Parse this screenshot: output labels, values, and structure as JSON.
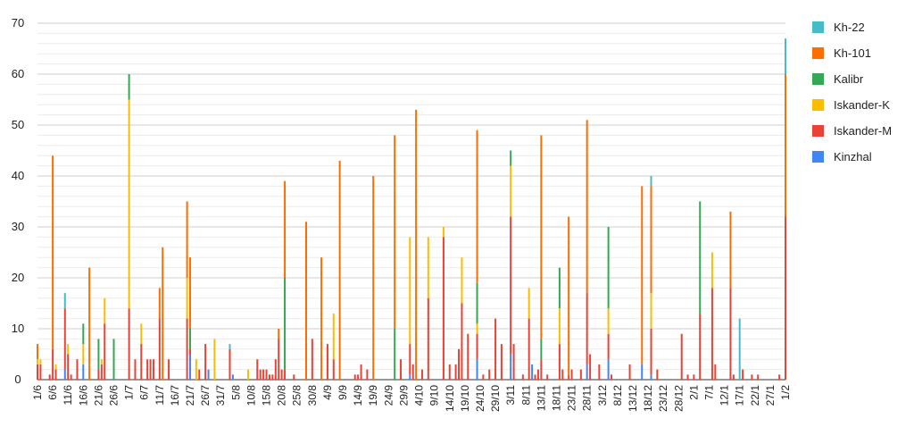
{
  "chart_data": {
    "type": "bar",
    "stacked": true,
    "ylim": [
      0,
      70
    ],
    "yticks": [
      0,
      10,
      20,
      30,
      40,
      50,
      60,
      70
    ],
    "grid": true,
    "legend_position": "right",
    "xtick_labels": [
      "1/6",
      "6/6",
      "11/6",
      "16/6",
      "21/6",
      "26/6",
      "1/7",
      "6/7",
      "11/7",
      "16/7",
      "21/7",
      "26/7",
      "31/7",
      "5/8",
      "10/8",
      "15/8",
      "20/8",
      "25/8",
      "30/8",
      "4/9",
      "9/9",
      "14/9",
      "19/9",
      "24/9",
      "29/9",
      "4/10",
      "9/10",
      "14/10",
      "19/10",
      "24/10",
      "29/10",
      "3/11",
      "8/11",
      "13/11",
      "18/11",
      "23/11",
      "28/11",
      "3/12",
      "8/12",
      "13/12",
      "18/12",
      "23/12",
      "28/12",
      "2/1",
      "7/1",
      "12/1",
      "17/1",
      "22/1",
      "27/1",
      "1/2"
    ],
    "series": [
      {
        "name": "Kinzhal",
        "color": "#4285f4"
      },
      {
        "name": "Iskander-M",
        "color": "#ea4335"
      },
      {
        "name": "Iskander-K",
        "color": "#fbbc04"
      },
      {
        "name": "Kalibr",
        "color": "#34a853"
      },
      {
        "name": "Kh-101",
        "color": "#ff6d01"
      },
      {
        "name": "Kh-22",
        "color": "#46bdc6"
      }
    ],
    "legend_order": [
      "Kh-22",
      "Kh-101",
      "Kalibr",
      "Iskander-K",
      "Iskander-M",
      "Kinzhal"
    ],
    "points": [
      {
        "date": "1/6",
        "values": [
          0,
          3,
          1,
          0,
          3,
          0
        ]
      },
      {
        "date": "2/6",
        "values": [
          0,
          3,
          1,
          0,
          0,
          0
        ]
      },
      {
        "date": "5/6",
        "values": [
          0,
          1,
          0,
          0,
          0,
          0
        ]
      },
      {
        "date": "6/6",
        "values": [
          0,
          6,
          0,
          0,
          38,
          0
        ]
      },
      {
        "date": "7/6",
        "values": [
          0,
          2,
          1,
          0,
          0,
          0
        ]
      },
      {
        "date": "9/6",
        "values": [
          0,
          0,
          0,
          0,
          0,
          0
        ]
      },
      {
        "date": "10/6",
        "values": [
          2,
          12,
          0,
          0,
          0,
          3
        ]
      },
      {
        "date": "11/6",
        "values": [
          0,
          5,
          2,
          0,
          0,
          0
        ]
      },
      {
        "date": "12/6",
        "values": [
          0,
          1,
          0,
          0,
          0,
          0
        ]
      },
      {
        "date": "14/6",
        "values": [
          0,
          4,
          0,
          0,
          0,
          0
        ]
      },
      {
        "date": "16/6",
        "values": [
          3,
          0,
          4,
          4,
          0,
          0
        ]
      },
      {
        "date": "18/6",
        "values": [
          0,
          0,
          0,
          0,
          22,
          0
        ]
      },
      {
        "date": "21/6",
        "values": [
          0,
          2,
          0,
          6,
          0,
          0
        ]
      },
      {
        "date": "22/6",
        "values": [
          0,
          3,
          1,
          0,
          0,
          0
        ]
      },
      {
        "date": "23/6",
        "values": [
          0,
          11,
          5,
          0,
          0,
          0
        ]
      },
      {
        "date": "26/6",
        "values": [
          0,
          0,
          0,
          8,
          0,
          0
        ]
      },
      {
        "date": "1/7",
        "values": [
          0,
          14,
          41,
          5,
          0,
          0
        ]
      },
      {
        "date": "3/7",
        "values": [
          0,
          4,
          0,
          0,
          0,
          0
        ]
      },
      {
        "date": "5/7",
        "values": [
          0,
          7,
          4,
          0,
          0,
          0
        ]
      },
      {
        "date": "7/7",
        "values": [
          0,
          4,
          0,
          0,
          0,
          0
        ]
      },
      {
        "date": "8/7",
        "values": [
          0,
          4,
          0,
          0,
          0,
          0
        ]
      },
      {
        "date": "9/7",
        "values": [
          0,
          4,
          0,
          0,
          0,
          0
        ]
      },
      {
        "date": "11/7",
        "values": [
          0,
          12,
          0,
          0,
          6,
          0
        ]
      },
      {
        "date": "12/7",
        "values": [
          0,
          0,
          0,
          0,
          26,
          0
        ]
      },
      {
        "date": "14/7",
        "values": [
          0,
          4,
          0,
          0,
          0,
          0
        ]
      },
      {
        "date": "20/7",
        "values": [
          0,
          12,
          8,
          0,
          15,
          0
        ]
      },
      {
        "date": "21/7",
        "values": [
          5,
          1,
          0,
          4,
          14,
          0
        ]
      },
      {
        "date": "23/7",
        "values": [
          0,
          0,
          4,
          0,
          0,
          0
        ]
      },
      {
        "date": "24/7",
        "values": [
          0,
          2,
          0,
          0,
          0,
          0
        ]
      },
      {
        "date": "26/7",
        "values": [
          0,
          7,
          0,
          0,
          0,
          0
        ]
      },
      {
        "date": "27/7",
        "values": [
          2,
          0,
          0,
          0,
          0,
          0
        ]
      },
      {
        "date": "29/7",
        "values": [
          0,
          0,
          8,
          0,
          0,
          0
        ]
      },
      {
        "date": "31/7",
        "values": [
          0,
          0,
          0,
          0,
          0,
          0
        ]
      },
      {
        "date": "3/8",
        "values": [
          0,
          6,
          0,
          0,
          0,
          1
        ]
      },
      {
        "date": "4/8",
        "values": [
          1,
          0,
          0,
          0,
          0,
          0
        ]
      },
      {
        "date": "9/8",
        "values": [
          0,
          0,
          2,
          0,
          0,
          0
        ]
      },
      {
        "date": "12/8",
        "values": [
          0,
          4,
          0,
          0,
          0,
          0
        ]
      },
      {
        "date": "13/8",
        "values": [
          0,
          2,
          0,
          0,
          0,
          0
        ]
      },
      {
        "date": "14/8",
        "values": [
          0,
          2,
          0,
          0,
          0,
          0
        ]
      },
      {
        "date": "15/8",
        "values": [
          0,
          2,
          0,
          0,
          0,
          0
        ]
      },
      {
        "date": "16/8",
        "values": [
          0,
          1,
          0,
          0,
          0,
          0
        ]
      },
      {
        "date": "17/8",
        "values": [
          0,
          1,
          0,
          0,
          0,
          0
        ]
      },
      {
        "date": "18/8",
        "values": [
          0,
          4,
          0,
          0,
          0,
          0
        ]
      },
      {
        "date": "19/8",
        "values": [
          0,
          8,
          0,
          0,
          2,
          0
        ]
      },
      {
        "date": "20/8",
        "values": [
          0,
          2,
          0,
          0,
          0,
          0
        ]
      },
      {
        "date": "21/8",
        "values": [
          0,
          2,
          0,
          18,
          19,
          0
        ]
      },
      {
        "date": "24/8",
        "values": [
          0,
          1,
          0,
          0,
          0,
          0
        ]
      },
      {
        "date": "28/8",
        "values": [
          0,
          0,
          0,
          0,
          31,
          0
        ]
      },
      {
        "date": "30/8",
        "values": [
          0,
          8,
          0,
          0,
          0,
          0
        ]
      },
      {
        "date": "2/9",
        "values": [
          0,
          0,
          0,
          0,
          24,
          0
        ]
      },
      {
        "date": "4/9",
        "values": [
          0,
          7,
          0,
          0,
          0,
          0
        ]
      },
      {
        "date": "6/9",
        "values": [
          0,
          4,
          9,
          0,
          0,
          0
        ]
      },
      {
        "date": "8/9",
        "values": [
          0,
          0,
          0,
          0,
          43,
          0
        ]
      },
      {
        "date": "13/9",
        "values": [
          0,
          1,
          0,
          0,
          0,
          0
        ]
      },
      {
        "date": "14/9",
        "values": [
          0,
          1,
          0,
          0,
          0,
          0
        ]
      },
      {
        "date": "15/9",
        "values": [
          0,
          3,
          0,
          0,
          0,
          0
        ]
      },
      {
        "date": "17/9",
        "values": [
          0,
          2,
          0,
          0,
          0,
          0
        ]
      },
      {
        "date": "19/9",
        "values": [
          0,
          0,
          0,
          0,
          40,
          0
        ]
      },
      {
        "date": "26/9",
        "values": [
          0,
          0,
          0,
          10,
          38,
          0
        ]
      },
      {
        "date": "28/9",
        "values": [
          0,
          4,
          0,
          0,
          0,
          0
        ]
      },
      {
        "date": "1/10",
        "values": [
          1,
          6,
          21,
          0,
          0,
          0
        ]
      },
      {
        "date": "2/10",
        "values": [
          0,
          3,
          0,
          0,
          0,
          0
        ]
      },
      {
        "date": "3/10",
        "values": [
          0,
          0,
          0,
          0,
          53,
          0
        ]
      },
      {
        "date": "5/10",
        "values": [
          0,
          2,
          0,
          0,
          0,
          0
        ]
      },
      {
        "date": "7/10",
        "values": [
          0,
          16,
          12,
          0,
          0,
          0
        ]
      },
      {
        "date": "12/10",
        "values": [
          0,
          28,
          2,
          0,
          0,
          0
        ]
      },
      {
        "date": "14/10",
        "values": [
          0,
          3,
          0,
          0,
          0,
          0
        ]
      },
      {
        "date": "16/10",
        "values": [
          0,
          3,
          0,
          0,
          0,
          0
        ]
      },
      {
        "date": "17/10",
        "values": [
          0,
          6,
          0,
          0,
          0,
          0
        ]
      },
      {
        "date": "18/10",
        "values": [
          0,
          15,
          9,
          0,
          0,
          0
        ]
      },
      {
        "date": "20/10",
        "values": [
          0,
          9,
          0,
          0,
          0,
          0
        ]
      },
      {
        "date": "23/10",
        "values": [
          4,
          5,
          2,
          8,
          30,
          0
        ]
      },
      {
        "date": "25/10",
        "values": [
          0,
          1,
          0,
          0,
          0,
          0
        ]
      },
      {
        "date": "27/10",
        "values": [
          0,
          2,
          0,
          0,
          0,
          0
        ]
      },
      {
        "date": "29/10",
        "values": [
          0,
          12,
          0,
          0,
          0,
          0
        ]
      },
      {
        "date": "31/10",
        "values": [
          0,
          7,
          0,
          0,
          0,
          0
        ]
      },
      {
        "date": "3/11",
        "values": [
          5,
          27,
          10,
          3,
          0,
          0
        ]
      },
      {
        "date": "4/11",
        "values": [
          0,
          7,
          0,
          0,
          0,
          0
        ]
      },
      {
        "date": "7/11",
        "values": [
          0,
          1,
          0,
          0,
          0,
          0
        ]
      },
      {
        "date": "9/11",
        "values": [
          0,
          12,
          6,
          0,
          0,
          0
        ]
      },
      {
        "date": "10/11",
        "values": [
          3,
          0,
          0,
          0,
          0,
          0
        ]
      },
      {
        "date": "11/11",
        "values": [
          0,
          1,
          0,
          0,
          0,
          0
        ]
      },
      {
        "date": "12/11",
        "values": [
          0,
          2,
          0,
          0,
          0,
          0
        ]
      },
      {
        "date": "13/11",
        "values": [
          0,
          4,
          0,
          4,
          40,
          0
        ]
      },
      {
        "date": "15/11",
        "values": [
          0,
          1,
          0,
          0,
          0,
          0
        ]
      },
      {
        "date": "19/11",
        "values": [
          0,
          7,
          7,
          8,
          0,
          0
        ]
      },
      {
        "date": "20/11",
        "values": [
          0,
          2,
          0,
          0,
          0,
          0
        ]
      },
      {
        "date": "22/11",
        "values": [
          0,
          1,
          0,
          0,
          31,
          0
        ]
      },
      {
        "date": "23/11",
        "values": [
          0,
          2,
          0,
          0,
          0,
          0
        ]
      },
      {
        "date": "26/11",
        "values": [
          0,
          2,
          0,
          0,
          0,
          0
        ]
      },
      {
        "date": "28/11",
        "values": [
          3,
          14,
          0,
          0,
          34,
          0
        ]
      },
      {
        "date": "29/11",
        "values": [
          0,
          5,
          0,
          0,
          0,
          0
        ]
      },
      {
        "date": "2/12",
        "values": [
          0,
          3,
          0,
          0,
          0,
          0
        ]
      },
      {
        "date": "5/12",
        "values": [
          4,
          5,
          5,
          16,
          0,
          0
        ]
      },
      {
        "date": "6/12",
        "values": [
          0,
          1,
          0,
          0,
          0,
          0
        ]
      },
      {
        "date": "12/12",
        "values": [
          0,
          3,
          0,
          0,
          0,
          0
        ]
      },
      {
        "date": "16/12",
        "values": [
          3,
          0,
          0,
          0,
          35,
          0
        ]
      },
      {
        "date": "19/12",
        "values": [
          1,
          9,
          7,
          0,
          21,
          2
        ]
      },
      {
        "date": "21/12",
        "values": [
          0,
          2,
          0,
          0,
          0,
          0
        ]
      },
      {
        "date": "29/12",
        "values": [
          0,
          9,
          0,
          0,
          0,
          0
        ]
      },
      {
        "date": "31/12",
        "values": [
          0,
          1,
          0,
          0,
          0,
          0
        ]
      },
      {
        "date": "2/1",
        "values": [
          0,
          1,
          0,
          0,
          0,
          0
        ]
      },
      {
        "date": "4/1",
        "values": [
          0,
          13,
          0,
          22,
          0,
          0
        ]
      },
      {
        "date": "8/1",
        "values": [
          0,
          18,
          7,
          0,
          0,
          0
        ]
      },
      {
        "date": "9/1",
        "values": [
          0,
          3,
          0,
          0,
          0,
          0
        ]
      },
      {
        "date": "14/1",
        "values": [
          0,
          18,
          0,
          0,
          15,
          0
        ]
      },
      {
        "date": "15/1",
        "values": [
          0,
          1,
          0,
          0,
          0,
          0
        ]
      },
      {
        "date": "17/1",
        "values": [
          0,
          0,
          0,
          0,
          0,
          12
        ]
      },
      {
        "date": "18/1",
        "values": [
          0,
          2,
          0,
          0,
          0,
          0
        ]
      },
      {
        "date": "21/1",
        "values": [
          0,
          1,
          0,
          0,
          0,
          0
        ]
      },
      {
        "date": "23/1",
        "values": [
          0,
          1,
          0,
          0,
          0,
          0
        ]
      },
      {
        "date": "30/1",
        "values": [
          0,
          1,
          0,
          0,
          0,
          0
        ]
      },
      {
        "date": "1/2",
        "values": [
          0,
          32,
          0,
          0,
          28,
          7
        ]
      }
    ]
  }
}
